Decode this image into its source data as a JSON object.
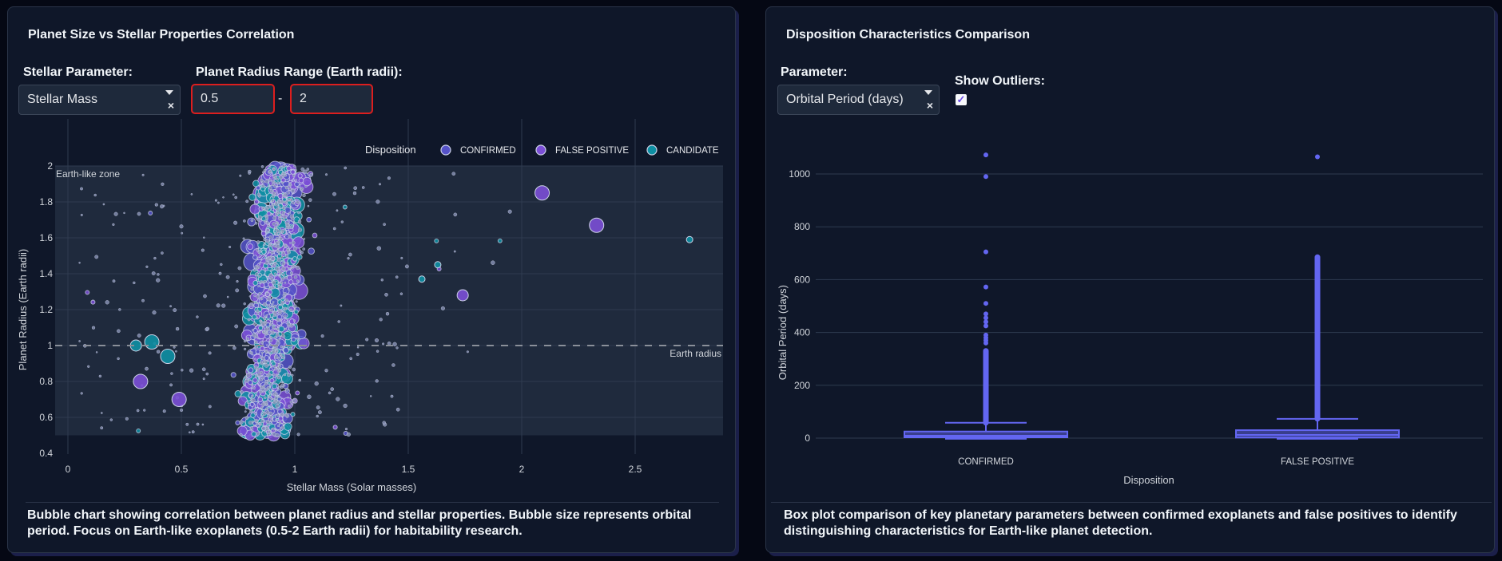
{
  "left_panel": {
    "title": "Planet Size vs Stellar Properties Correlation",
    "stellar_param_label": "Stellar Parameter:",
    "stellar_param_value": "Stellar Mass",
    "radius_range_label": "Planet Radius Range (Earth radii):",
    "radius_min": "0.5",
    "radius_max": "2",
    "range_separator": "-",
    "description": "Bubble chart showing correlation between planet radius and stellar properties. Bubble size represents orbital period. Focus on Earth-like exoplanets (0.5-2 Earth radii) for habitability research."
  },
  "right_panel": {
    "title": "Disposition Characteristics Comparison",
    "parameter_label": "Parameter:",
    "parameter_value": "Orbital Period (days)",
    "show_outliers_label": "Show Outliers:",
    "show_outliers_checked": true,
    "description": "Box plot comparison of key planetary parameters between confirmed exoplanets and false positives to identify distinguishing characteristics for Earth-like planet detection."
  },
  "colors": {
    "confirmed": "#5552c8",
    "false_positive": "#7b4fd6",
    "candidate": "#0e8fa3",
    "box": "#6366f1",
    "highlight_border": "#dc1e1e"
  },
  "chart_data": [
    {
      "type": "scatter",
      "title": "",
      "xlabel": "Stellar Mass (Solar masses)",
      "ylabel": "Planet Radius (Earth radii)",
      "xlim": [
        -0.1,
        2.9
      ],
      "ylim": [
        0.4,
        2.1
      ],
      "xticks": [
        "0",
        "0.5",
        "1",
        "1.5",
        "2",
        "2.5"
      ],
      "xtick_values": [
        0,
        0.5,
        1,
        1.5,
        2,
        2.5
      ],
      "yticks": [
        "0.4",
        "0.6",
        "0.8",
        "1",
        "1.2",
        "1.4",
        "1.6",
        "1.8",
        "2"
      ],
      "ytick_values": [
        0.4,
        0.6,
        0.8,
        1,
        1.2,
        1.4,
        1.6,
        1.8,
        2
      ],
      "grid": true,
      "legend": {
        "title": "Disposition",
        "position": "top-right",
        "entries": [
          "CONFIRMED",
          "FALSE POSITIVE",
          "CANDIDATE"
        ]
      },
      "size_encodes": "Orbital Period",
      "annotations": [
        {
          "text": "Earth-like zone",
          "shaded_y_range": [
            0.5,
            2
          ]
        },
        {
          "text": "Earth radius",
          "hline_y": 1
        }
      ],
      "cloud": {
        "x_center": 0.95,
        "x_spread": 0.2,
        "y_range": [
          0.5,
          2.0
        ],
        "approx_points": 1800
      },
      "notable_points": [
        {
          "x": 2.09,
          "y": 1.85,
          "disposition": "FALSE POSITIVE",
          "size": "large"
        },
        {
          "x": 2.33,
          "y": 1.67,
          "disposition": "FALSE POSITIVE",
          "size": "large"
        },
        {
          "x": 2.74,
          "y": 1.59,
          "disposition": "CANDIDATE",
          "size": "small"
        },
        {
          "x": 1.74,
          "y": 1.28,
          "disposition": "FALSE POSITIVE",
          "size": "medium"
        },
        {
          "x": 1.63,
          "y": 1.45,
          "disposition": "CANDIDATE",
          "size": "small"
        },
        {
          "x": 1.56,
          "y": 1.37,
          "disposition": "CANDIDATE",
          "size": "small"
        },
        {
          "x": 0.37,
          "y": 1.02,
          "disposition": "CANDIDATE",
          "size": "large"
        },
        {
          "x": 0.3,
          "y": 1.0,
          "disposition": "CANDIDATE",
          "size": "medium"
        },
        {
          "x": 0.32,
          "y": 0.8,
          "disposition": "FALSE POSITIVE",
          "size": "large"
        },
        {
          "x": 0.44,
          "y": 0.94,
          "disposition": "CANDIDATE",
          "size": "large"
        },
        {
          "x": 0.49,
          "y": 0.7,
          "disposition": "FALSE POSITIVE",
          "size": "large"
        }
      ]
    },
    {
      "type": "box",
      "title": "",
      "xlabel": "Disposition",
      "ylabel": "Orbital Period (days)",
      "categories": [
        "CONFIRMED",
        "FALSE POSITIVE"
      ],
      "ylim": [
        -30,
        1120
      ],
      "yticks": [
        "0",
        "200",
        "400",
        "600",
        "800",
        "1000"
      ],
      "ytick_values": [
        0,
        200,
        400,
        600,
        800,
        1000
      ],
      "grid": true,
      "series": [
        {
          "name": "CONFIRMED",
          "min": 0.5,
          "q1": 3,
          "median": 9,
          "q3": 25,
          "upperfence": 58,
          "outliers_dense_range": [
            58,
            330
          ],
          "outliers": [
            360,
            370,
            380,
            390,
            425,
            440,
            455,
            470,
            510,
            572,
            705,
            990,
            1072
          ]
        },
        {
          "name": "FALSE POSITIVE",
          "min": 0.5,
          "q1": 2,
          "median": 12,
          "q3": 30,
          "upperfence": 73,
          "outliers_dense_range": [
            73,
            685
          ],
          "outliers": [
            1065
          ]
        }
      ]
    }
  ]
}
